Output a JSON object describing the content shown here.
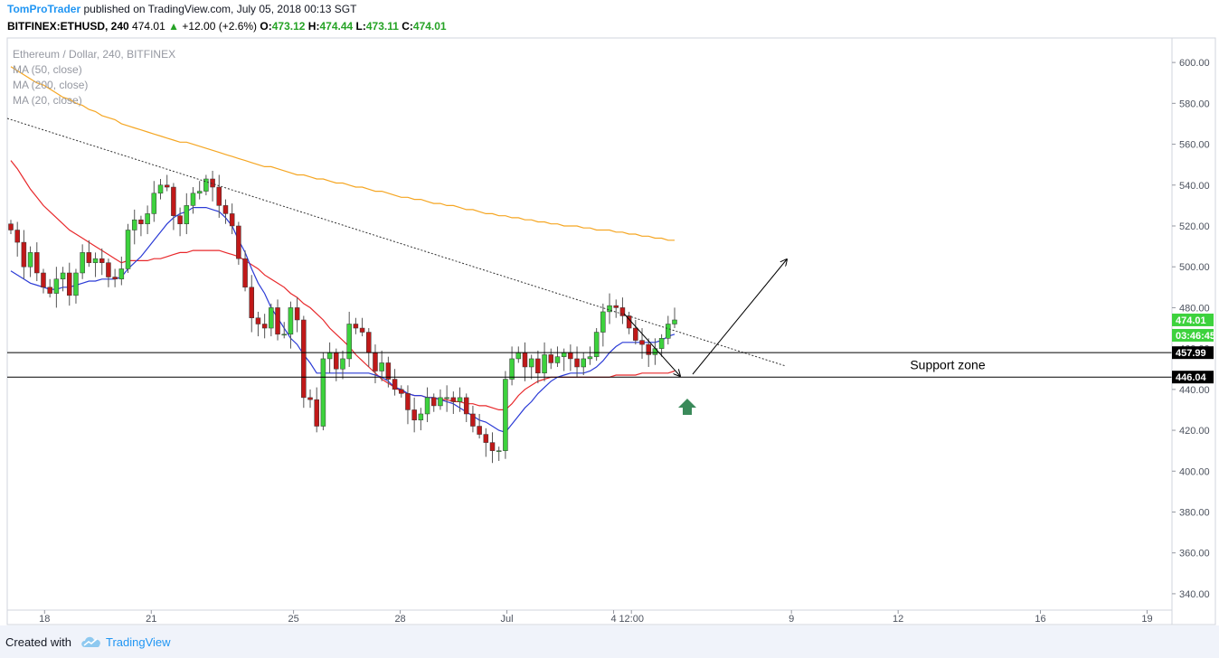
{
  "header": {
    "author": "TomProTrader",
    "published_text": "published on TradingView.com, July 05, 2018 00:13 SGT"
  },
  "ohlc": {
    "symbol": "BITFINEX:ETHUSD, 240",
    "last": "474.01",
    "change_arrow": "▲",
    "change": "+12.00 (+2.6%)",
    "o_label": "O:",
    "o": "473.12",
    "h_label": "H:",
    "h": "474.44",
    "l_label": "L:",
    "l": "473.11",
    "c_label": "C:",
    "c": "474.01"
  },
  "legend": {
    "title": "Ethereum / Dollar, 240, BITFINEX",
    "ma50": "MA (50, close)",
    "ma200": "MA (200, close)",
    "ma20": "MA (20, close)"
  },
  "footer": {
    "created_with": "Created with",
    "brand": "TradingView"
  },
  "chart_data": {
    "type": "candlestick",
    "ylim": [
      332,
      612
    ],
    "y_ticks": [
      "340.00",
      "360.00",
      "380.00",
      "400.00",
      "420.00",
      "440.00",
      "460.00",
      "480.00",
      "500.00",
      "520.00",
      "540.00",
      "560.00",
      "580.00",
      "600.00"
    ],
    "y_tick_values": [
      340,
      360,
      380,
      400,
      420,
      440,
      460,
      480,
      500,
      520,
      540,
      560,
      580,
      600
    ],
    "x_ticks": [
      {
        "label": "18",
        "x": 17
      },
      {
        "label": "21",
        "x": 20
      },
      {
        "label": "25",
        "x": 24
      },
      {
        "label": "28",
        "x": 27
      },
      {
        "label": "Jul",
        "x": 30
      },
      {
        "label": "4",
        "x": 33
      },
      {
        "label": "12:00",
        "x": 33.5
      },
      {
        "label": "9",
        "x": 38
      },
      {
        "label": "12",
        "x": 41
      },
      {
        "label": "16",
        "x": 45
      },
      {
        "label": "19",
        "x": 48
      }
    ],
    "x_range": [
      15.95,
      48.7
    ],
    "price_labels": {
      "last": "474.01",
      "countdown": "03:46:45",
      "support_upper": "457.99",
      "support_lower": "446.04"
    },
    "support_levels": [
      457.99,
      446.04
    ],
    "support_label": "Support zone",
    "close": [
      518,
      512,
      500,
      507,
      497,
      490,
      487,
      494,
      497,
      486,
      497,
      507,
      502,
      504,
      502,
      495,
      494,
      499,
      518,
      523,
      521,
      526,
      536,
      540,
      539,
      525,
      521,
      530,
      536,
      537,
      543,
      539,
      530,
      526,
      520,
      504,
      490,
      475,
      472,
      470,
      480,
      467,
      467,
      480,
      474,
      436,
      435,
      422,
      455,
      458,
      450,
      455,
      472,
      470,
      468,
      458,
      449,
      453,
      445,
      440,
      438,
      430,
      425,
      428,
      436,
      432,
      436,
      436,
      434,
      436,
      428,
      422,
      418,
      414,
      410,
      410,
      445,
      455,
      458,
      451,
      455,
      448,
      457,
      453,
      456,
      458,
      455,
      451,
      455,
      456,
      468,
      478,
      481,
      480,
      476,
      470,
      464,
      462,
      457,
      460,
      465,
      472,
      474
    ],
    "ma20": [
      498,
      496,
      494,
      492,
      491,
      490,
      489,
      489,
      490,
      490,
      491,
      492,
      493,
      493,
      494,
      494,
      494,
      495,
      499,
      502,
      505,
      509,
      513,
      517,
      521,
      524,
      526,
      527,
      529,
      529,
      529,
      528,
      527,
      524,
      520,
      513,
      507,
      499,
      492,
      487,
      480,
      475,
      470,
      465,
      462,
      457,
      453,
      448,
      448,
      448,
      448,
      448,
      448,
      448,
      448,
      448,
      447,
      446,
      444,
      441,
      440,
      438,
      437,
      437,
      436,
      436,
      435,
      434,
      433,
      431,
      429,
      427,
      425,
      424,
      422,
      420,
      419,
      423,
      427,
      431,
      434,
      438,
      441,
      444,
      446,
      447,
      448,
      448,
      448,
      449,
      451,
      454,
      458,
      461,
      463,
      463,
      463,
      463,
      463,
      463,
      464,
      466,
      467
    ],
    "ma50": [
      552,
      548,
      543,
      538,
      534,
      530,
      527,
      524,
      521,
      518,
      516,
      514,
      512,
      510,
      508,
      506,
      504,
      502,
      503,
      503,
      503,
      503,
      504,
      504,
      505,
      506,
      507,
      507,
      508,
      508,
      508,
      508,
      508,
      507,
      506,
      505,
      503,
      501,
      499,
      496,
      494,
      492,
      490,
      487,
      485,
      482,
      480,
      477,
      474,
      470,
      467,
      464,
      461,
      457,
      454,
      451,
      448,
      445,
      443,
      441,
      439,
      438,
      437,
      437,
      436,
      436,
      435,
      435,
      434,
      434,
      433,
      433,
      432,
      432,
      431,
      430,
      430,
      433,
      437,
      440,
      442,
      444,
      445,
      446,
      446,
      446,
      446,
      446,
      446,
      446,
      446,
      446,
      446,
      447,
      447,
      447,
      447,
      448,
      448,
      448,
      448,
      448,
      449
    ],
    "ma200": [
      598,
      596,
      594,
      592,
      590,
      589,
      587,
      585,
      583,
      582,
      580,
      579,
      577,
      576,
      574,
      573,
      572,
      570,
      569,
      568,
      567,
      566,
      565,
      564,
      563,
      562,
      561,
      561,
      560,
      559,
      558,
      557,
      556,
      555,
      554,
      553,
      552,
      551,
      550,
      549,
      549,
      548,
      547,
      546,
      545,
      545,
      544,
      543,
      543,
      542,
      541,
      541,
      540,
      539,
      539,
      538,
      537,
      537,
      536,
      535,
      534,
      534,
      533,
      533,
      532,
      531,
      531,
      530,
      530,
      529,
      528,
      528,
      527,
      526,
      526,
      525,
      525,
      524,
      524,
      523,
      523,
      522,
      522,
      521,
      521,
      520,
      520,
      520,
      519,
      519,
      518,
      518,
      518,
      517,
      517,
      516,
      516,
      515,
      515,
      514,
      514,
      513,
      513
    ]
  }
}
